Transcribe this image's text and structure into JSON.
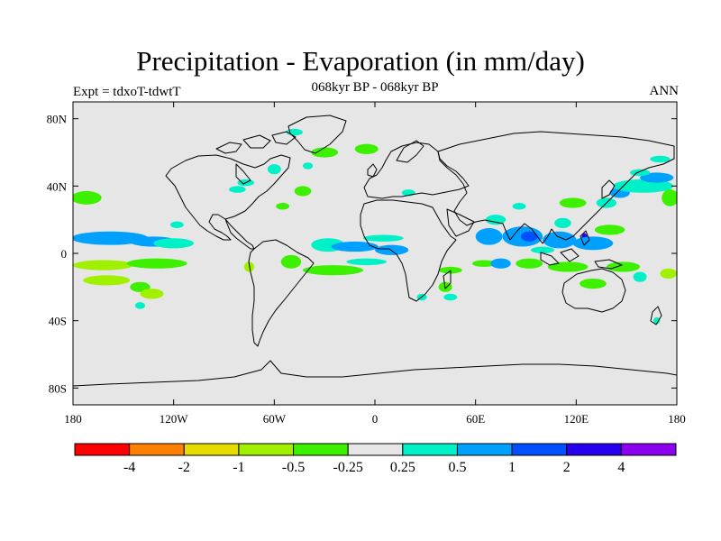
{
  "header": {
    "title": "Precipitation - Evaporation (in mm/day)",
    "subtitle": "068kyr BP - 068kyr BP",
    "left_label": "Expt = tdxoT-tdwtT",
    "right_label": "ANN"
  },
  "map": {
    "projection": "cylindrical-equidistant",
    "lon_range": [
      -180,
      180
    ],
    "lat_range": [
      -90,
      90
    ],
    "background_color": "#e6e6e6",
    "coastline_color": "#000000",
    "lon_ticks": [
      {
        "value": -180,
        "label": "180"
      },
      {
        "value": -120,
        "label": "120W"
      },
      {
        "value": -60,
        "label": "60W"
      },
      {
        "value": 0,
        "label": "0"
      },
      {
        "value": 60,
        "label": "60E"
      },
      {
        "value": 120,
        "label": "120E"
      },
      {
        "value": 180,
        "label": "180"
      }
    ],
    "lat_ticks": [
      {
        "value": 80,
        "label": "80N"
      },
      {
        "value": 40,
        "label": "40N"
      },
      {
        "value": 0,
        "label": "0"
      },
      {
        "value": -40,
        "label": "40S"
      },
      {
        "value": -80,
        "label": "80S"
      }
    ]
  },
  "colorbar": {
    "colors": [
      "#ff0000",
      "#ff8000",
      "#e6dc00",
      "#a0f000",
      "#3cf000",
      "#e6e6e6",
      "#00f0c8",
      "#00a0ff",
      "#0050ff",
      "#2800f0",
      "#8c00f0"
    ],
    "labels": [
      "-4",
      "-2",
      "-1",
      "-0.5",
      "-0.25",
      "0.25",
      "0.5",
      "1",
      "2",
      "4"
    ]
  },
  "anomaly_regions": [
    {
      "color": "#0050ff",
      "lon": -170,
      "lat": 9,
      "rlon": 10,
      "rlat": 2
    },
    {
      "color": "#00a0ff",
      "lon": -158,
      "lat": 9,
      "rlon": 23,
      "rlat": 4
    },
    {
      "color": "#00a0ff",
      "lon": -132,
      "lat": 7,
      "rlon": 14,
      "rlat": 3
    },
    {
      "color": "#00f0c8",
      "lon": -120,
      "lat": 6,
      "rlon": 12,
      "rlat": 3
    },
    {
      "color": "#3cf000",
      "lon": -172,
      "lat": 33,
      "rlon": 9,
      "rlat": 4
    },
    {
      "color": "#a0f000",
      "lon": -162,
      "lat": -7,
      "rlon": 18,
      "rlat": 3
    },
    {
      "color": "#3cf000",
      "lon": -130,
      "lat": -6,
      "rlon": 18,
      "rlat": 3
    },
    {
      "color": "#a0f000",
      "lon": -160,
      "lat": -16,
      "rlon": 14,
      "rlat": 3
    },
    {
      "color": "#3cf000",
      "lon": -140,
      "lat": -20,
      "rlon": 6,
      "rlat": 3
    },
    {
      "color": "#a0f000",
      "lon": -133,
      "lat": -24,
      "rlon": 7,
      "rlat": 3
    },
    {
      "color": "#00f0c8",
      "lon": -140,
      "lat": -31,
      "rlon": 3,
      "rlat": 2
    },
    {
      "color": "#00f0c8",
      "lon": -118,
      "lat": 17,
      "rlon": 4,
      "rlat": 2
    },
    {
      "color": "#00f0c8",
      "lon": -82,
      "lat": 38,
      "rlon": 5,
      "rlat": 2
    },
    {
      "color": "#00f0c8",
      "lon": -77,
      "lat": 42,
      "rlon": 5,
      "rlat": 2
    },
    {
      "color": "#3cf000",
      "lon": -43,
      "lat": 37,
      "rlon": 5,
      "rlat": 3
    },
    {
      "color": "#00f0c8",
      "lon": -60,
      "lat": 50,
      "rlon": 4,
      "rlat": 3
    },
    {
      "color": "#00f0c8",
      "lon": -40,
      "lat": 52,
      "rlon": 3,
      "rlat": 2
    },
    {
      "color": "#3cf000",
      "lon": -30,
      "lat": 60,
      "rlon": 8,
      "rlat": 3
    },
    {
      "color": "#3cf000",
      "lon": -5,
      "lat": 62,
      "rlon": 7,
      "rlat": 3
    },
    {
      "color": "#00f0c8",
      "lon": 20,
      "lat": 36,
      "rlon": 4,
      "rlat": 2
    },
    {
      "color": "#00f0c8",
      "lon": -48,
      "lat": 72,
      "rlon": 5,
      "rlat": 2
    },
    {
      "color": "#00f0c8",
      "lon": -28,
      "lat": 5,
      "rlon": 10,
      "rlat": 4
    },
    {
      "color": "#00a0ff",
      "lon": -12,
      "lat": 4,
      "rlon": 14,
      "rlat": 3
    },
    {
      "color": "#00a0ff",
      "lon": 10,
      "lat": 2,
      "rlon": 10,
      "rlat": 3
    },
    {
      "color": "#00f0c8",
      "lon": 5,
      "lat": 9,
      "rlon": 12,
      "rlat": 2
    },
    {
      "color": "#3cf000",
      "lon": -50,
      "lat": -5,
      "rlon": 6,
      "rlat": 4
    },
    {
      "color": "#3cf000",
      "lon": -25,
      "lat": -10,
      "rlon": 18,
      "rlat": 3
    },
    {
      "color": "#00f0c8",
      "lon": -5,
      "lat": -5,
      "rlon": 12,
      "rlat": 2
    },
    {
      "color": "#a0f000",
      "lon": -75,
      "lat": -8,
      "rlon": 3,
      "rlat": 3
    },
    {
      "color": "#3cf000",
      "lon": 45,
      "lat": -10,
      "rlon": 7,
      "rlat": 2
    },
    {
      "color": "#3cf000",
      "lon": 42,
      "lat": -20,
      "rlon": 4,
      "rlat": 3
    },
    {
      "color": "#00f0c8",
      "lon": 45,
      "lat": -26,
      "rlon": 4,
      "rlat": 2
    },
    {
      "color": "#00f0c8",
      "lon": 28,
      "lat": -26,
      "rlon": 3,
      "rlat": 2
    },
    {
      "color": "#00a0ff",
      "lon": 68,
      "lat": 10,
      "rlon": 8,
      "rlat": 5
    },
    {
      "color": "#00a0ff",
      "lon": 88,
      "lat": 10,
      "rlon": 12,
      "rlat": 6
    },
    {
      "color": "#0050ff",
      "lon": 92,
      "lat": 10,
      "rlon": 5,
      "rlat": 3
    },
    {
      "color": "#00f0c8",
      "lon": 72,
      "lat": 20,
      "rlon": 6,
      "rlat": 3
    },
    {
      "color": "#00a0ff",
      "lon": 110,
      "lat": 8,
      "rlon": 10,
      "rlat": 5
    },
    {
      "color": "#2800f0",
      "lon": 125,
      "lat": 8,
      "rlon": 2,
      "rlat": 4
    },
    {
      "color": "#00a0ff",
      "lon": 130,
      "lat": 6,
      "rlon": 12,
      "rlat": 4
    },
    {
      "color": "#3cf000",
      "lon": 140,
      "lat": 14,
      "rlon": 9,
      "rlat": 3
    },
    {
      "color": "#00f0c8",
      "lon": 100,
      "lat": 2,
      "rlon": 7,
      "rlat": 2
    },
    {
      "color": "#00f0c8",
      "lon": 112,
      "lat": 18,
      "rlon": 5,
      "rlat": 3
    },
    {
      "color": "#3cf000",
      "lon": 65,
      "lat": -6,
      "rlon": 7,
      "rlat": 2
    },
    {
      "color": "#00a0ff",
      "lon": 75,
      "lat": -6,
      "rlon": 6,
      "rlat": 3
    },
    {
      "color": "#3cf000",
      "lon": 92,
      "lat": -6,
      "rlon": 8,
      "rlat": 3
    },
    {
      "color": "#3cf000",
      "lon": 115,
      "lat": -8,
      "rlon": 12,
      "rlat": 3
    },
    {
      "color": "#3cf000",
      "lon": 148,
      "lat": -8,
      "rlon": 10,
      "rlat": 3
    },
    {
      "color": "#3cf000",
      "lon": 130,
      "lat": -18,
      "rlon": 8,
      "rlat": 3
    },
    {
      "color": "#a0f000",
      "lon": 175,
      "lat": -12,
      "rlon": 5,
      "rlat": 3
    },
    {
      "color": "#00f0c8",
      "lon": 158,
      "lat": -14,
      "rlon": 4,
      "rlat": 3
    },
    {
      "color": "#00f0c8",
      "lon": 138,
      "lat": 30,
      "rlon": 6,
      "rlat": 3
    },
    {
      "color": "#00a0ff",
      "lon": 146,
      "lat": 36,
      "rlon": 6,
      "rlat": 3
    },
    {
      "color": "#00f0c8",
      "lon": 160,
      "lat": 40,
      "rlon": 18,
      "rlat": 4
    },
    {
      "color": "#00a0ff",
      "lon": 168,
      "lat": 45,
      "rlon": 10,
      "rlat": 3
    },
    {
      "color": "#00f0c8",
      "lon": 158,
      "lat": 48,
      "rlon": 6,
      "rlat": 2
    },
    {
      "color": "#3cf000",
      "lon": 176,
      "lat": 33,
      "rlon": 5,
      "rlat": 5
    },
    {
      "color": "#3cf000",
      "lon": 118,
      "lat": 30,
      "rlon": 8,
      "rlat": 3
    },
    {
      "color": "#00f0c8",
      "lon": 86,
      "lat": 28,
      "rlon": 4,
      "rlat": 2
    },
    {
      "color": "#00f0c8",
      "lon": 168,
      "lat": -40,
      "rlon": 2,
      "rlat": 2
    },
    {
      "color": "#00f0c8",
      "lon": 170,
      "lat": 56,
      "rlon": 6,
      "rlat": 2
    },
    {
      "color": "#3cf000",
      "lon": -55,
      "lat": 28,
      "rlon": 4,
      "rlat": 2
    }
  ]
}
